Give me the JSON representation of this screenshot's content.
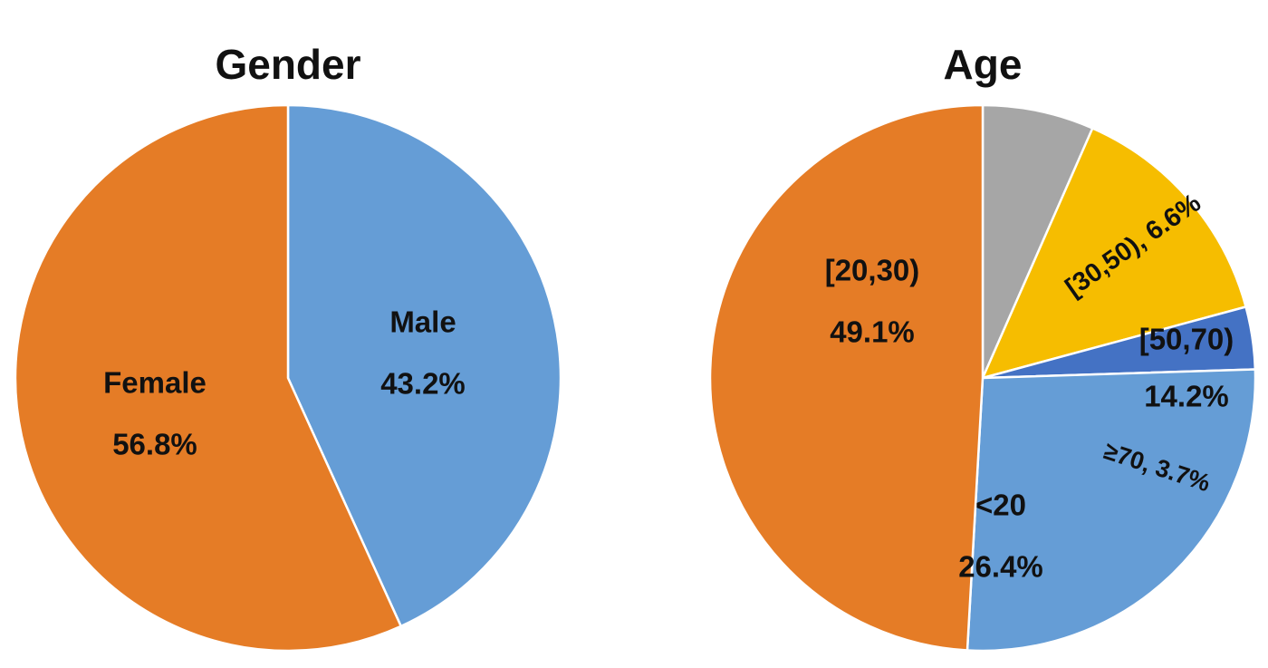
{
  "chart_data": [
    {
      "type": "pie",
      "title": "Gender",
      "slices": [
        {
          "label": "Male",
          "value": 43.2,
          "value_text": "43.2%",
          "color": "#659dd6"
        },
        {
          "label": "Female",
          "value": 56.8,
          "value_text": "56.8%",
          "color": "#e57c26"
        }
      ]
    },
    {
      "type": "pie",
      "title": "Age",
      "slices": [
        {
          "label": "[30,50)",
          "value": 6.6,
          "value_text": "6.6%",
          "color": "#a6a6a6"
        },
        {
          "label": "[50,70)",
          "value": 14.2,
          "value_text": "14.2%",
          "color": "#f6bd00"
        },
        {
          "label": "≥70",
          "value": 3.7,
          "value_text": "3.7%",
          "color": "#4472c4"
        },
        {
          "label": "<20",
          "value": 26.4,
          "value_text": "26.4%",
          "color": "#659dd6"
        },
        {
          "label": "[20,30)",
          "value": 49.1,
          "value_text": "49.1%",
          "color": "#e57c26"
        }
      ]
    }
  ]
}
